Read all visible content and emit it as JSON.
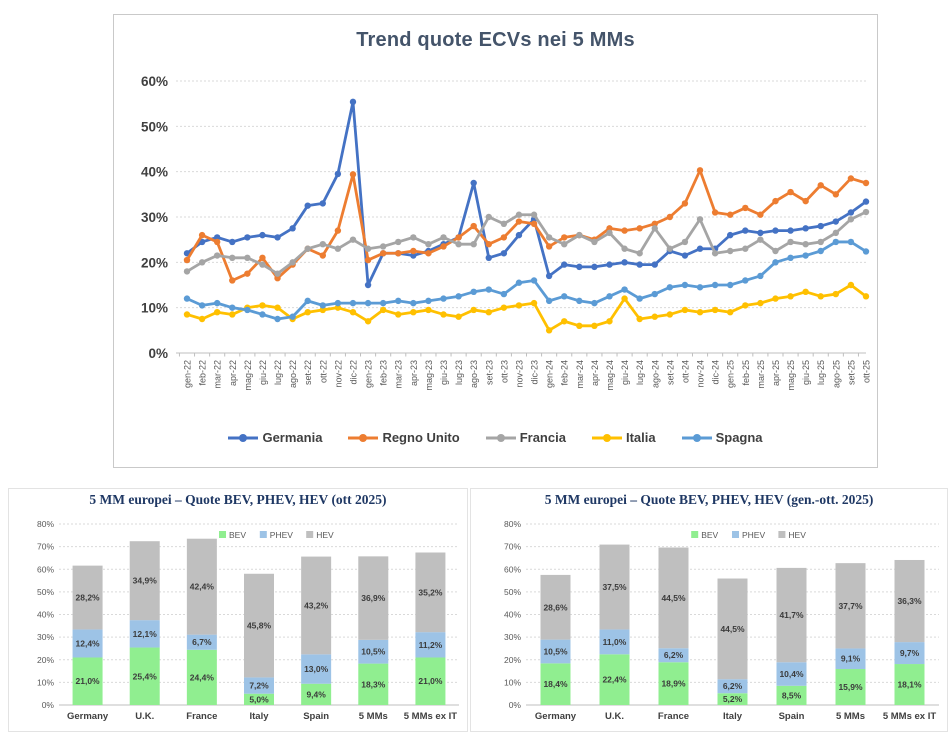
{
  "colors": {
    "germania": "#4472C4",
    "regno_unito": "#ED7D31",
    "francia": "#A5A5A5",
    "italia": "#FFC000",
    "spagna": "#5B9BD5",
    "bev": "#90EE90",
    "phev": "#9DC3E6",
    "hev": "#BFBFBF",
    "title_line": "#44546A",
    "title_bar": "#1F3864",
    "axis_text": "#595959",
    "tick_text_bold": "#404040",
    "grid": "#D9D9D9",
    "axis_line": "#BFBFBF"
  },
  "chart_data": [
    {
      "type": "line",
      "title": "Trend quote ECVs nei 5 MMs",
      "ylabel": "",
      "xlabel": "",
      "ylim": [
        0,
        60
      ],
      "y_ticks": [
        0,
        10,
        20,
        30,
        40,
        50,
        60
      ],
      "grid": true,
      "legend_position": "bottom",
      "x": [
        "gen-22",
        "feb-22",
        "mar-22",
        "apr-22",
        "mag-22",
        "giu-22",
        "lug-22",
        "ago-22",
        "set-22",
        "ott-22",
        "nov-22",
        "dic-22",
        "gen-23",
        "feb-23",
        "mar-23",
        "apr-23",
        "mag-23",
        "giu-23",
        "lug-23",
        "ago-23",
        "set-23",
        "ott-23",
        "nov-23",
        "dic-23",
        "gen-24",
        "feb-24",
        "mar-24",
        "apr-24",
        "mag-24",
        "giu-24",
        "lug-24",
        "ago-24",
        "set-24",
        "ott-24",
        "nov-24",
        "dic-24",
        "gen-25",
        "feb-25",
        "mar-25",
        "apr-25",
        "mag-25",
        "giu-25",
        "lug-25",
        "ago-25",
        "set-25",
        "ott-25"
      ],
      "series": [
        {
          "name": "Germania",
          "color": "#4472C4",
          "values": [
            22,
            24.5,
            25.5,
            24.5,
            25.5,
            26,
            25.5,
            27.5,
            32.5,
            33,
            39.5,
            55.4,
            15,
            22,
            22,
            21.5,
            22.5,
            24,
            25.5,
            37.5,
            21,
            22,
            26,
            29.5,
            17,
            19.5,
            19,
            19,
            19.5,
            20,
            19.5,
            19.5,
            22.5,
            21.5,
            23,
            23,
            26,
            27,
            26.5,
            27,
            27,
            27.5,
            28,
            29,
            31,
            33.4
          ]
        },
        {
          "name": "Regno Unito",
          "color": "#ED7D31",
          "values": [
            20.5,
            26,
            24.5,
            16,
            17.5,
            21,
            16.5,
            19.5,
            23,
            21.5,
            27,
            39.4,
            20.5,
            22,
            22,
            22.5,
            22,
            23.5,
            25.5,
            28,
            24,
            25.5,
            29,
            28.5,
            23.5,
            25.5,
            26,
            25,
            27.5,
            27,
            27.5,
            28.5,
            30,
            33,
            40.3,
            31,
            30.5,
            32,
            30.5,
            33.5,
            35.5,
            33.5,
            37,
            35,
            38.5,
            37.5
          ]
        },
        {
          "name": "Francia",
          "color": "#A5A5A5",
          "values": [
            18,
            20,
            21.5,
            21,
            21,
            19.5,
            17.5,
            20,
            23,
            24,
            23,
            25,
            23,
            23.5,
            24.5,
            25.5,
            24,
            25.5,
            24,
            24,
            30,
            28.5,
            30.5,
            30.5,
            25.5,
            24,
            26,
            24.5,
            26.5,
            23,
            22,
            27.5,
            23,
            24.5,
            29.5,
            22,
            22.5,
            23,
            25,
            22.5,
            24.5,
            24,
            24.5,
            26.5,
            29.5,
            31.1
          ]
        },
        {
          "name": "Italia",
          "color": "#FFC000",
          "values": [
            8.5,
            7.5,
            9,
            8.5,
            10,
            10.5,
            10,
            7.5,
            9,
            9.5,
            10,
            9,
            7,
            9.5,
            8.5,
            9,
            9.5,
            8.5,
            8,
            9.5,
            9,
            10,
            10.5,
            11,
            5,
            7,
            6,
            6,
            7,
            12,
            7.5,
            8,
            8.5,
            9.5,
            9,
            9.5,
            9,
            10.5,
            11,
            12,
            12.5,
            13.5,
            12.5,
            13,
            15,
            12.5
          ]
        },
        {
          "name": "Spagna",
          "color": "#5B9BD5",
          "values": [
            12,
            10.5,
            11,
            10,
            9.5,
            8.5,
            7.5,
            8,
            11.5,
            10.5,
            11,
            11,
            11,
            11,
            11.5,
            11,
            11.5,
            12,
            12.5,
            13.5,
            14,
            13,
            15.5,
            16,
            11.5,
            12.5,
            11.5,
            11,
            12.5,
            14,
            12,
            13,
            14.5,
            15,
            14.5,
            15,
            15,
            16,
            17,
            20,
            21,
            21.5,
            22.5,
            24.5,
            24.5,
            22.4
          ]
        }
      ]
    },
    {
      "type": "bar",
      "stacked": true,
      "title": "5 MM europei – Quote BEV, PHEV, HEV (ott 2025)",
      "ylim": [
        0,
        80
      ],
      "y_ticks": [
        0,
        10,
        20,
        30,
        40,
        50,
        60,
        70,
        80
      ],
      "grid": true,
      "legend_position": "top",
      "categories": [
        "Germany",
        "U.K.",
        "France",
        "Italy",
        "Spain",
        "5 MMs",
        "5 MMs ex IT"
      ],
      "series": [
        {
          "name": "BEV",
          "color": "#90EE90",
          "values": [
            21.0,
            25.4,
            24.4,
            5.0,
            9.4,
            18.3,
            21.0
          ]
        },
        {
          "name": "PHEV",
          "color": "#9DC3E6",
          "values": [
            12.4,
            12.1,
            6.7,
            7.2,
            13.0,
            10.5,
            11.2
          ]
        },
        {
          "name": "HEV",
          "color": "#BFBFBF",
          "values": [
            28.2,
            34.9,
            42.4,
            45.8,
            43.2,
            36.9,
            35.2
          ]
        }
      ]
    },
    {
      "type": "bar",
      "stacked": true,
      "title": "5 MM europei – Quote BEV, PHEV, HEV (gen.-ott. 2025)",
      "ylim": [
        0,
        80
      ],
      "y_ticks": [
        0,
        10,
        20,
        30,
        40,
        50,
        60,
        70,
        80
      ],
      "grid": true,
      "legend_position": "top",
      "categories": [
        "Germany",
        "U.K.",
        "France",
        "Italy",
        "Spain",
        "5 MMs",
        "5 MMs ex IT"
      ],
      "series": [
        {
          "name": "BEV",
          "color": "#90EE90",
          "values": [
            18.4,
            22.4,
            18.9,
            5.2,
            8.5,
            15.9,
            18.1
          ]
        },
        {
          "name": "PHEV",
          "color": "#9DC3E6",
          "values": [
            10.5,
            11.0,
            6.2,
            6.2,
            10.4,
            9.1,
            9.7
          ]
        },
        {
          "name": "HEV",
          "color": "#BFBFBF",
          "values": [
            28.6,
            37.5,
            44.5,
            44.5,
            41.7,
            37.7,
            36.3
          ]
        }
      ]
    }
  ]
}
